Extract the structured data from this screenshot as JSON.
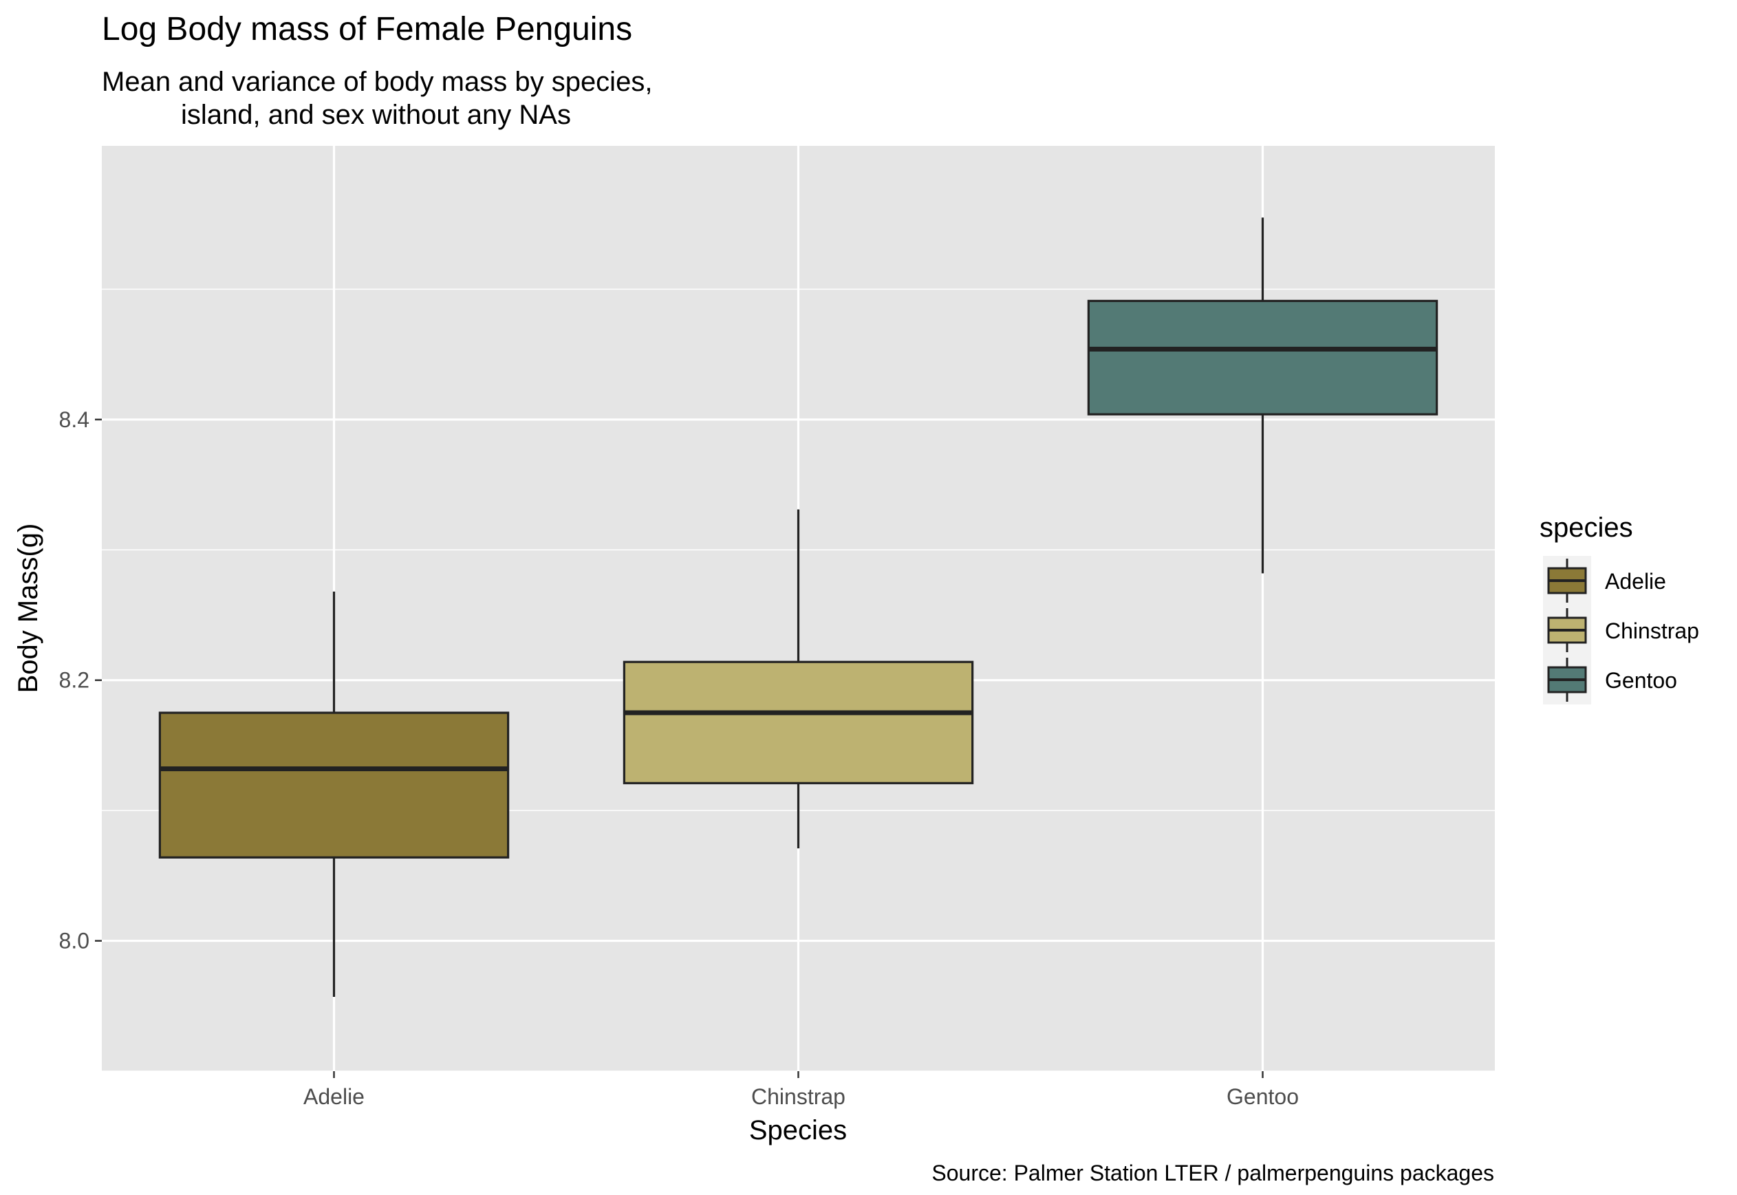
{
  "chart_data": {
    "type": "boxplot",
    "title": "Log Body mass of Female Penguins",
    "subtitle_lines": [
      "Mean and variance of body mass by species,",
      "island, and sex without any NAs"
    ],
    "xlabel": "Species",
    "ylabel": "Body Mass(g)",
    "caption": "Source: Palmer Station LTER / palmerpenguins packages",
    "categories": [
      "Adelie",
      "Chinstrap",
      "Gentoo"
    ],
    "ylim": [
      7.9,
      8.61
    ],
    "y_ticks": [
      8.0,
      8.2,
      8.4
    ],
    "y_tick_labels": [
      "8.0",
      "8.2",
      "8.4"
    ],
    "y_minor_ticks": [
      7.9,
      8.1,
      8.3,
      8.5
    ],
    "grid": true,
    "legend": {
      "title": "species",
      "position": "right",
      "entries": [
        "Adelie",
        "Chinstrap",
        "Gentoo"
      ]
    },
    "series": [
      {
        "category": "Adelie",
        "min": 7.957,
        "q1": 8.064,
        "median": 8.132,
        "q3": 8.175,
        "max": 8.268,
        "color": "#8B7937"
      },
      {
        "category": "Chinstrap",
        "min": 8.071,
        "q1": 8.121,
        "median": 8.175,
        "q3": 8.214,
        "max": 8.331,
        "color": "#BDB271"
      },
      {
        "category": "Gentoo",
        "min": 8.282,
        "q1": 8.404,
        "median": 8.454,
        "q3": 8.491,
        "max": 8.555,
        "color": "#537A75"
      }
    ],
    "colors": {
      "panel_background": "#E5E5E5",
      "grid": "#FFFFFF",
      "box_outline": "#222222"
    }
  }
}
